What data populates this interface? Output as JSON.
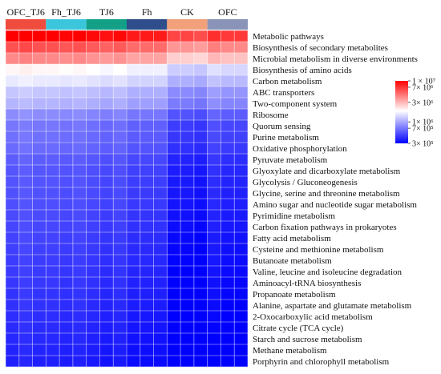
{
  "chart_data": {
    "type": "heatmap",
    "groups": [
      {
        "name": "OFC_TJ6",
        "color": "#f04c3e"
      },
      {
        "name": "Fh_TJ6",
        "color": "#3cc6dc"
      },
      {
        "name": "TJ6",
        "color": "#13a087"
      },
      {
        "name": "Fh",
        "color": "#2e4d8a"
      },
      {
        "name": "CK",
        "color": "#f2a07a"
      },
      {
        "name": "OFC",
        "color": "#8a93b8"
      }
    ],
    "samples_per_group": 3,
    "pathways": [
      "Metabolic pathways",
      "Biosynthesis of secondary metabolites",
      "Microbial metabolism in diverse environments",
      "Biosynthesis of amino acids",
      "Carbon metabolism",
      "ABC transporters",
      "Two-component system",
      "Ribosome",
      "Quorum sensing",
      "Purine metabolism",
      "Oxidative phosphorylation",
      "Pyruvate metabolism",
      "Glyoxylate and dicarboxylate metabolism",
      "Glycolysis / Gluconeogenesis",
      "Glycine, serine and threonine metabolism",
      "Amino sugar and nucleotide sugar metabolism",
      "Pyrimidine metabolism",
      "Carbon fixation pathways in prokaryotes",
      "Fatty acid metabolism",
      "Cysteine and methionine metabolism",
      "Butanoate metabolism",
      "Valine, leucine and isoleucine degradation",
      "Aminoacyl-tRNA biosynthesis",
      "Propanoate metabolism",
      "Alanine, aspartate and glutamate metabolism",
      "2-Oxocarboxylic acid metabolism",
      "Citrate cycle (TCA cycle)",
      "Starch and sucrose metabolism",
      "Methane metabolism",
      "Porphyrin and chlorophyll metabolism"
    ],
    "row_base_values": [
      10000000,
      6000000,
      4200000,
      2100000,
      1700000,
      1300000,
      1150000,
      850000,
      720000,
      690000,
      660000,
      600000,
      570000,
      555000,
      545000,
      535000,
      520000,
      505000,
      490000,
      480000,
      470000,
      460000,
      450000,
      440000,
      430000,
      420000,
      410000,
      400000,
      390000,
      380000
    ],
    "sample_factors": [
      1.0,
      1.05,
      1.0,
      1.0,
      0.97,
      1.0,
      0.95,
      0.9,
      0.95,
      0.85,
      0.85,
      0.85,
      0.65,
      0.65,
      0.62,
      0.75,
      0.7,
      0.7
    ],
    "color_scale": {
      "type": "log",
      "min": 300000,
      "max": 10000000,
      "mid": 2000000,
      "low_color": "#0000ff",
      "mid_color": "#ffffff",
      "high_color": "#ff0000"
    },
    "legend": {
      "position": "right",
      "ticks": [
        {
          "label": "1 × 10⁷",
          "value": 10000000
        },
        {
          "label": "7× 10⁶",
          "value": 7000000
        },
        {
          "label": "3× 10⁶",
          "value": 3000000
        },
        {
          "label": "1× 10⁶",
          "value": 1000000
        },
        {
          "label": "7× 10⁵",
          "value": 700000
        },
        {
          "label": "3× 10⁵",
          "value": 300000
        }
      ]
    }
  }
}
